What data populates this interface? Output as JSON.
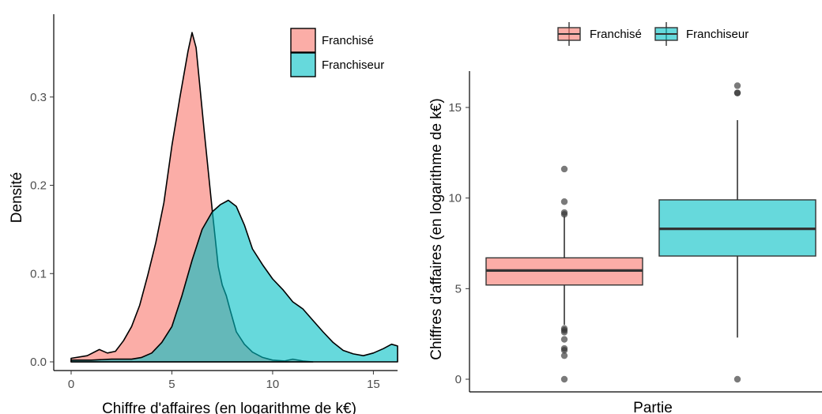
{
  "colors": {
    "franchise": "#F8766D",
    "franchiseur": "#00BFC4",
    "axis": "#000000"
  },
  "chart_data": [
    {
      "type": "area",
      "subtype": "density",
      "xlabel": "Chiffre d'affaires (en logarithme de k€)",
      "ylabel": "Densité",
      "xlim": [
        0,
        16.2
      ],
      "ylim": [
        0,
        0.375
      ],
      "x_ticks": [
        0,
        5,
        10,
        15
      ],
      "x_tick_labels": [
        "0",
        "5",
        "10",
        "15"
      ],
      "y_ticks": [
        0.0,
        0.1,
        0.2,
        0.3
      ],
      "y_tick_labels": [
        "0.0",
        "0.1",
        "0.2",
        "0.3"
      ],
      "grid": false,
      "legend_position": "top-right",
      "series": [
        {
          "name": "Franchisé",
          "color": "#F8766D",
          "x": [
            0,
            0.8,
            1.4,
            1.8,
            2.2,
            2.6,
            3.0,
            3.4,
            3.8,
            4.2,
            4.6,
            5.0,
            5.4,
            5.8,
            6.0,
            6.2,
            6.6,
            7.0,
            7.3,
            7.5,
            7.7,
            7.9,
            8.2,
            8.6,
            9.0,
            9.5,
            10.0,
            10.6,
            11.0,
            11.5,
            12.0
          ],
          "y": [
            0.004,
            0.007,
            0.014,
            0.01,
            0.012,
            0.024,
            0.04,
            0.064,
            0.098,
            0.135,
            0.18,
            0.245,
            0.3,
            0.352,
            0.373,
            0.356,
            0.262,
            0.172,
            0.108,
            0.087,
            0.075,
            0.058,
            0.034,
            0.02,
            0.011,
            0.005,
            0.002,
            0.001,
            0.003,
            0.001,
            0.0
          ]
        },
        {
          "name": "Franchiseur",
          "color": "#00BFC4",
          "x": [
            0,
            1.0,
            2.0,
            3.0,
            3.5,
            4.0,
            4.5,
            5.0,
            5.5,
            6.0,
            6.5,
            7.0,
            7.4,
            7.8,
            8.2,
            8.6,
            9.0,
            9.5,
            10.0,
            10.5,
            11.0,
            11.5,
            12.0,
            12.5,
            13.0,
            13.5,
            14.0,
            14.5,
            15.0,
            15.5,
            15.9,
            16.2
          ],
          "y": [
            0.002,
            0.002,
            0.003,
            0.003,
            0.005,
            0.01,
            0.022,
            0.04,
            0.075,
            0.115,
            0.15,
            0.17,
            0.178,
            0.183,
            0.176,
            0.155,
            0.128,
            0.11,
            0.094,
            0.082,
            0.068,
            0.06,
            0.047,
            0.034,
            0.022,
            0.013,
            0.009,
            0.007,
            0.01,
            0.015,
            0.02,
            0.018
          ]
        }
      ],
      "legend": [
        {
          "label": "Franchisé",
          "color": "#F8766D"
        },
        {
          "label": "Franchiseur",
          "color": "#00BFC4"
        }
      ]
    },
    {
      "type": "box",
      "xlabel": "Partie",
      "ylabel": "Chiffres d'affaires (en logarithme de k€)",
      "ylim": [
        -0.5,
        17
      ],
      "y_ticks": [
        0,
        5,
        10,
        15
      ],
      "y_tick_labels": [
        "0",
        "5",
        "10",
        "15"
      ],
      "grid": false,
      "legend_position": "top",
      "series": [
        {
          "name": "Franchisé",
          "color": "#F8766D",
          "q1": 5.2,
          "median": 6.0,
          "q3": 6.7,
          "whisker_low": 3.0,
          "whisker_high": 9.0,
          "outliers": [
            11.6,
            9.8,
            9.2,
            9.1,
            2.8,
            2.7,
            2.6,
            2.2,
            1.7,
            1.6,
            1.3,
            0.0
          ]
        },
        {
          "name": "Franchiseur",
          "color": "#00BFC4",
          "q1": 6.8,
          "median": 8.3,
          "q3": 9.9,
          "whisker_low": 2.3,
          "whisker_high": 14.3,
          "outliers": [
            16.2,
            15.8,
            15.8,
            0.0
          ]
        }
      ],
      "legend": [
        {
          "label": "Franchisé",
          "color": "#F8766D"
        },
        {
          "label": "Franchiseur",
          "color": "#00BFC4"
        }
      ]
    }
  ]
}
